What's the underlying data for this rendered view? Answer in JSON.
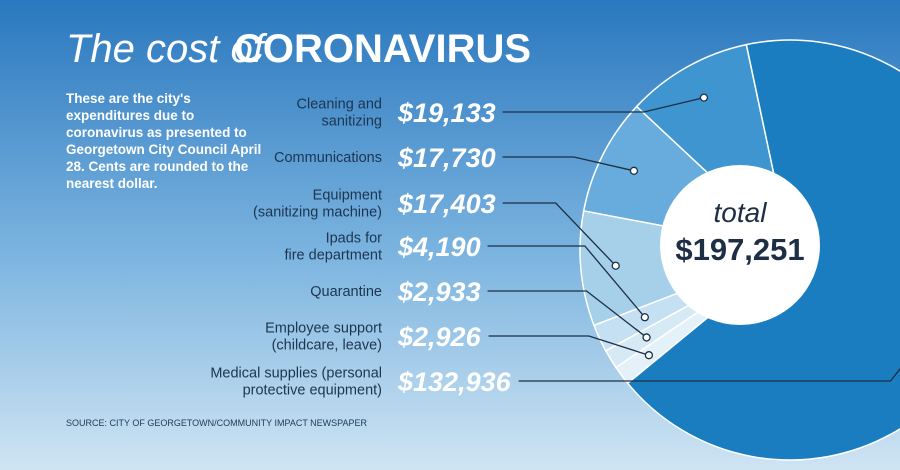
{
  "chart_data": {
    "type": "pie",
    "title_lead": "The cost of",
    "title": "CORONAVIRUS",
    "description": "These are the city's expenditures due to coronavirus as presented to Georgetown City Council April 28. Cents are rounded to the nearest dollar.",
    "categories": [
      "Cleaning and\nsanitizing",
      "Communications",
      "Equipment\n(sanitizing machine)",
      "Ipads for\nfire department",
      "Quarantine",
      "Employee support\n(childcare, leave)",
      "Medical supplies (personal\nprotective equipment)"
    ],
    "values": [
      19133,
      17730,
      17403,
      4190,
      2933,
      2926,
      132936
    ],
    "value_labels": [
      "$19,133",
      "$17,730",
      "$17,403",
      "$4,190",
      "$2,933",
      "$2,926",
      "$132,936"
    ],
    "colors": [
      "#3f95d0",
      "#67acdc",
      "#a6cfea",
      "#c4e0f2",
      "#d6eaf6",
      "#e4f1f9",
      "#1a7dc0"
    ],
    "total_caption": "total",
    "total": {
      "value": 197251,
      "label": "$197,251"
    },
    "source": "SOURCE: CITY OF GEORGETOWN/COMMUNITY IMPACT NEWSPAPER"
  }
}
